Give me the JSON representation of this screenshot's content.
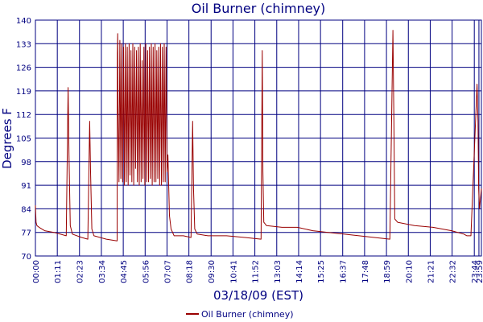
{
  "chart_data": {
    "type": "line",
    "title": "Oil Burner (chimney)",
    "xlabel": "03/18/09 (EST)",
    "ylabel": "Degrees F",
    "ylim": [
      70,
      140
    ],
    "xlim_minutes": [
      0,
      1447
    ],
    "grid": true,
    "legend_position": "bottom",
    "y_ticks": [
      "70",
      "77",
      "84",
      "91",
      "98",
      "105",
      "112",
      "119",
      "126",
      "133",
      "140"
    ],
    "x_ticks": [
      "00:00",
      "01:11",
      "02:23",
      "03:34",
      "04:45",
      "05:56",
      "07:07",
      "08:18",
      "09:30",
      "10:41",
      "11:52",
      "13:03",
      "14:14",
      "15:25",
      "16:37",
      "17:48",
      "18:59",
      "20:10",
      "21:21",
      "22:32",
      "23:44",
      "23:59"
    ],
    "colors": {
      "line": "#990000",
      "grid": "#000080",
      "text": "#000080"
    },
    "series": [
      {
        "name": "Oil Burner (chimney)",
        "x_minutes": [
          0,
          2,
          5,
          12,
          30,
          60,
          100,
          106,
          109,
          113,
          120,
          150,
          170,
          176,
          179,
          183,
          190,
          230,
          265,
          266,
          267,
          268,
          271,
          274,
          277,
          280,
          283,
          286,
          289,
          292,
          295,
          298,
          301,
          304,
          307,
          310,
          313,
          316,
          319,
          322,
          325,
          328,
          331,
          334,
          337,
          340,
          343,
          346,
          349,
          352,
          355,
          358,
          361,
          364,
          367,
          370,
          373,
          376,
          379,
          382,
          385,
          388,
          391,
          394,
          397,
          400,
          403,
          406,
          409,
          412,
          415,
          418,
          421,
          424,
          427,
          430,
          435,
          440,
          450,
          480,
          505,
          510,
          513,
          517,
          525,
          560,
          620,
          680,
          732,
          736,
          738,
          741,
          750,
          800,
          850,
          900,
          950,
          1000,
          1050,
          1100,
          1150,
          1160,
          1163,
          1166,
          1175,
          1230,
          1290,
          1350,
          1390,
          1400,
          1413,
          1433,
          1436,
          1438,
          1441,
          1447
        ],
        "values": [
          85,
          80,
          79,
          78.5,
          77.5,
          77,
          76,
          120,
          100,
          79,
          76.5,
          75.5,
          75,
          110,
          95,
          78,
          76,
          75,
          74.5,
          130,
          136,
          115,
          92,
          134,
          93,
          133,
          92,
          132,
          91,
          133,
          92,
          132,
          91,
          133,
          94,
          131,
          92,
          133,
          91,
          132,
          96,
          131,
          92,
          132,
          91,
          133,
          92,
          128,
          93,
          132,
          91,
          133,
          92,
          131,
          92,
          132,
          93,
          133,
          91,
          132,
          92,
          133,
          92,
          131,
          93,
          132,
          91,
          133,
          91,
          132,
          92,
          133,
          92,
          132,
          95,
          100,
          82,
          78,
          76,
          76,
          75.5,
          110,
          90,
          78,
          76.5,
          76,
          76,
          75.5,
          75,
          131,
          95,
          80,
          79,
          78.5,
          78.5,
          77.5,
          77,
          76.5,
          76,
          75.5,
          75,
          137,
          110,
          81,
          80,
          79,
          78.5,
          77.5,
          76.5,
          76,
          76,
          121,
          110,
          90,
          84,
          90
        ]
      }
    ]
  }
}
